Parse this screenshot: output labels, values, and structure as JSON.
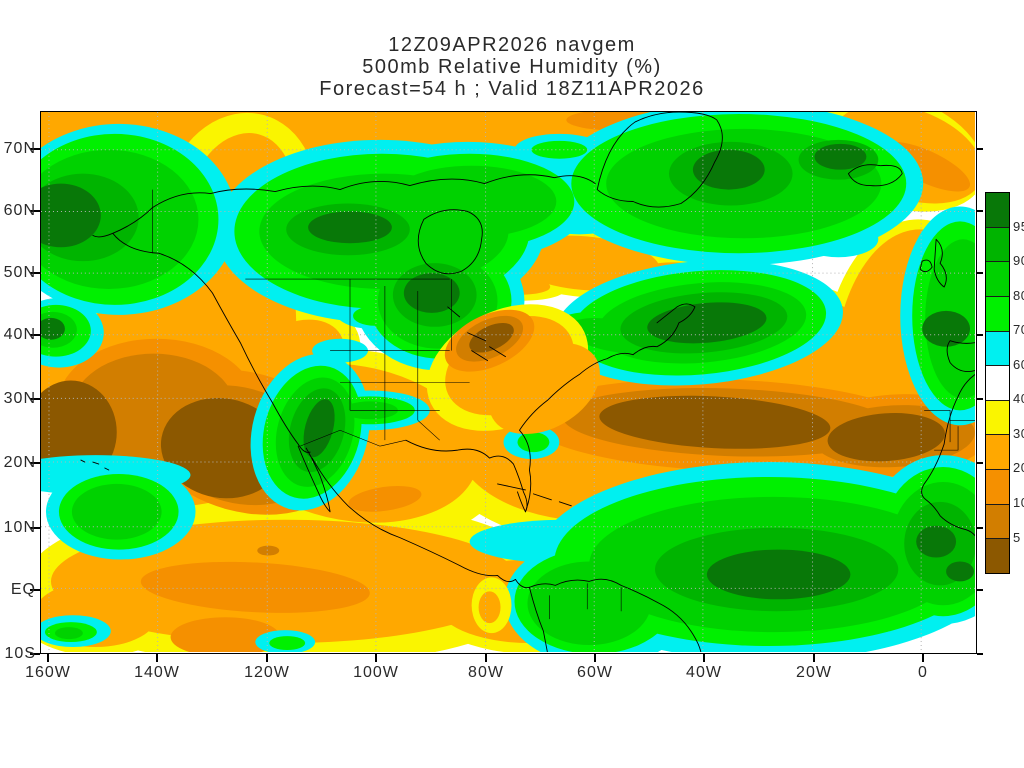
{
  "title": {
    "line1": "12Z09APR2026 navgem",
    "line2": "500mb Relative Humidity (%)",
    "line3": "Forecast=54 h ; Valid 18Z11APR2026"
  },
  "map": {
    "lat_labels": [
      "70N",
      "60N",
      "50N",
      "40N",
      "30N",
      "20N",
      "10N",
      "EQ",
      "10S"
    ],
    "lon_labels": [
      "160W",
      "140W",
      "120W",
      "100W",
      "80W",
      "60W",
      "40W",
      "20W",
      "0"
    ],
    "coastline_color": "#000000",
    "grid_color": "#b4b4b4"
  },
  "colorbar": {
    "labels": [
      "95",
      "90",
      "80",
      "70",
      "60",
      "40",
      "30",
      "20",
      "10",
      "5"
    ],
    "colors": [
      "#087808",
      "#00B400",
      "#00D200",
      "#00F000",
      "#00F0F0",
      "#FFFFFF",
      "#FAF500",
      "#FFA800",
      "#F59000",
      "#D27E00",
      "#8C5800"
    ]
  },
  "chart_data": {
    "type": "heatmap",
    "subtype": "filled-contour-weather-map",
    "title": "500mb Relative Humidity (%)",
    "model": "navgem",
    "run": "12Z09APR2026",
    "forecast_hours": 54,
    "valid": "18Z11APR2026",
    "units": "%",
    "contour_levels": [
      5,
      10,
      20,
      30,
      40,
      60,
      70,
      80,
      90,
      95
    ],
    "palette": [
      {
        "range": ">95",
        "color": "#087808"
      },
      {
        "range": "90-95",
        "color": "#00B400"
      },
      {
        "range": "80-90",
        "color": "#00D200"
      },
      {
        "range": "70-80",
        "color": "#00F000"
      },
      {
        "range": "60-70",
        "color": "#00F0F0"
      },
      {
        "range": "40-60",
        "color": "#FFFFFF"
      },
      {
        "range": "30-40",
        "color": "#FAF500"
      },
      {
        "range": "20-30",
        "color": "#FFA800"
      },
      {
        "range": "10-20",
        "color": "#F59000"
      },
      {
        "range": "5-10",
        "color": "#D27E00"
      },
      {
        "range": "<5",
        "color": "#8C5800"
      }
    ],
    "x_axis": {
      "ticks": [
        "160W",
        "140W",
        "120W",
        "100W",
        "80W",
        "60W",
        "40W",
        "20W",
        "0"
      ],
      "range_deg_lon": [
        -161.5,
        10
      ]
    },
    "y_axis": {
      "ticks": [
        "70N",
        "60N",
        "50N",
        "40N",
        "30N",
        "20N",
        "10N",
        "EQ",
        "10S"
      ],
      "range_deg_lat": [
        -10,
        76
      ]
    },
    "notable_features": [
      "Moist (green) maxima: Gulf of Alaska, central Canada, upper Midwest / Great Lakes, Greenland-Iceland-North Atlantic, mid-Atlantic 45N blob, Baja / Gulf of California wedge, ITCZ tropical Atlantic and equatorial Africa, northern South America",
      "Dry (orange-brown) maxima: subtropical eastern Pacific 20-30N, northeastern US Appalachian patch, subtropical Atlantic 20-30N band extending over Sahara / Mauritania, tropical east Pacific near equator, high-latitude band along top edge"
    ]
  }
}
